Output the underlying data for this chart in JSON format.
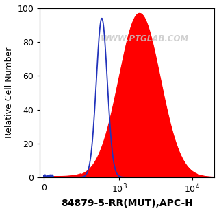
{
  "title": "",
  "xlabel": "84879-5-RR(MUT),APC-H",
  "ylabel": "Relative Cell Number",
  "watermark": "WWW.PTGLAB.COM",
  "ylim": [
    0,
    100
  ],
  "yticks": [
    0,
    20,
    40,
    60,
    80,
    100
  ],
  "blue_color": "#2233bb",
  "red_color": "#ff0000",
  "background_color": "#ffffff",
  "xlabel_fontsize": 10,
  "ylabel_fontsize": 9,
  "tick_fontsize": 9,
  "linthresh": 200,
  "linscale": 0.3
}
